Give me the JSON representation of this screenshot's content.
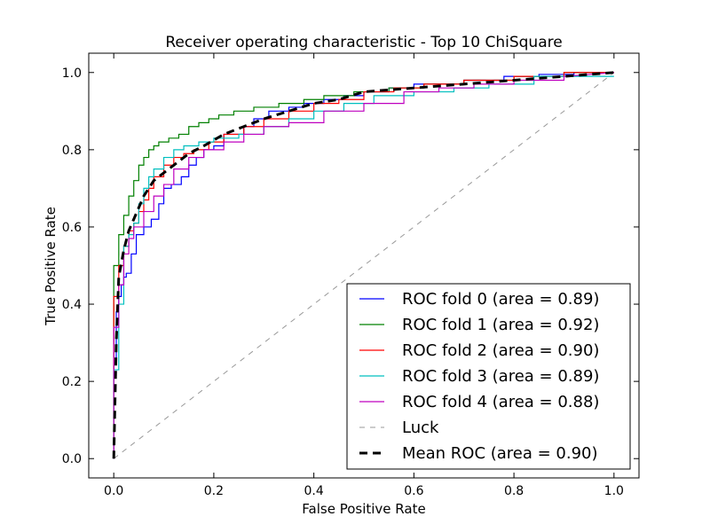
{
  "chart_data": {
    "type": "line",
    "title": "Receiver operating characteristic - Top 10 ChiSquare",
    "xlabel": "False Positive Rate",
    "ylabel": "True Positive Rate",
    "xlim": [
      -0.05,
      1.05
    ],
    "ylim": [
      -0.05,
      1.05
    ],
    "xticks": [
      "0.0",
      "0.2",
      "0.4",
      "0.6",
      "0.8",
      "1.0"
    ],
    "yticks": [
      "0.0",
      "0.2",
      "0.4",
      "0.6",
      "0.8",
      "1.0"
    ],
    "grid": false,
    "legend_position": "lower-right",
    "series": [
      {
        "name": "ROC fold 0 (area = 0.89)",
        "color": "#0000ff",
        "style": "solid",
        "x": [
          0.0,
          0.0,
          0.005,
          0.005,
          0.01,
          0.01,
          0.015,
          0.015,
          0.02,
          0.02,
          0.025,
          0.025,
          0.035,
          0.035,
          0.045,
          0.045,
          0.06,
          0.06,
          0.075,
          0.075,
          0.09,
          0.09,
          0.1,
          0.1,
          0.115,
          0.115,
          0.135,
          0.135,
          0.15,
          0.15,
          0.165,
          0.165,
          0.18,
          0.18,
          0.2,
          0.2,
          0.22,
          0.22,
          0.26,
          0.26,
          0.28,
          0.28,
          0.31,
          0.31,
          0.35,
          0.35,
          0.38,
          0.38,
          0.42,
          0.42,
          0.46,
          0.46,
          0.5,
          0.5,
          0.55,
          0.55,
          0.6,
          0.6,
          0.65,
          0.65,
          0.7,
          0.7,
          0.78,
          0.78,
          0.85,
          0.85,
          0.92,
          0.92,
          1.0
        ],
        "y": [
          0.0,
          0.26,
          0.26,
          0.38,
          0.38,
          0.42,
          0.42,
          0.45,
          0.45,
          0.47,
          0.47,
          0.48,
          0.48,
          0.53,
          0.53,
          0.58,
          0.58,
          0.6,
          0.6,
          0.62,
          0.62,
          0.66,
          0.66,
          0.7,
          0.7,
          0.71,
          0.71,
          0.73,
          0.73,
          0.76,
          0.76,
          0.78,
          0.78,
          0.8,
          0.8,
          0.81,
          0.81,
          0.84,
          0.84,
          0.86,
          0.86,
          0.88,
          0.88,
          0.9,
          0.9,
          0.91,
          0.91,
          0.92,
          0.92,
          0.93,
          0.93,
          0.94,
          0.94,
          0.95,
          0.95,
          0.96,
          0.96,
          0.97,
          0.97,
          0.97,
          0.97,
          0.98,
          0.98,
          0.99,
          0.99,
          0.995,
          0.995,
          1.0,
          1.0
        ]
      },
      {
        "name": "ROC fold 1 (area = 0.92)",
        "color": "#008000",
        "style": "solid",
        "x": [
          0.0,
          0.0,
          0.01,
          0.01,
          0.02,
          0.02,
          0.03,
          0.03,
          0.04,
          0.04,
          0.05,
          0.05,
          0.06,
          0.06,
          0.07,
          0.07,
          0.08,
          0.08,
          0.09,
          0.09,
          0.11,
          0.11,
          0.13,
          0.13,
          0.15,
          0.15,
          0.17,
          0.17,
          0.19,
          0.19,
          0.21,
          0.21,
          0.24,
          0.24,
          0.28,
          0.28,
          0.33,
          0.33,
          0.38,
          0.38,
          0.42,
          0.42,
          0.48,
          0.48,
          0.55,
          0.55,
          0.62,
          0.62,
          0.7,
          0.7,
          0.8,
          0.8,
          0.9,
          0.9,
          1.0
        ],
        "y": [
          0.0,
          0.5,
          0.5,
          0.58,
          0.58,
          0.63,
          0.63,
          0.68,
          0.68,
          0.72,
          0.72,
          0.76,
          0.76,
          0.78,
          0.78,
          0.8,
          0.8,
          0.81,
          0.81,
          0.82,
          0.82,
          0.83,
          0.83,
          0.84,
          0.84,
          0.86,
          0.86,
          0.87,
          0.87,
          0.88,
          0.88,
          0.89,
          0.89,
          0.9,
          0.9,
          0.91,
          0.91,
          0.92,
          0.92,
          0.93,
          0.93,
          0.94,
          0.94,
          0.95,
          0.95,
          0.96,
          0.96,
          0.97,
          0.97,
          0.98,
          0.98,
          0.99,
          0.99,
          1.0,
          1.0
        ]
      },
      {
        "name": "ROC fold 2 (area = 0.90)",
        "color": "#ff0000",
        "style": "solid",
        "x": [
          0.0,
          0.0,
          0.01,
          0.01,
          0.02,
          0.02,
          0.03,
          0.03,
          0.04,
          0.04,
          0.05,
          0.05,
          0.06,
          0.06,
          0.07,
          0.07,
          0.08,
          0.08,
          0.1,
          0.1,
          0.12,
          0.12,
          0.14,
          0.14,
          0.16,
          0.16,
          0.19,
          0.19,
          0.22,
          0.22,
          0.26,
          0.26,
          0.3,
          0.3,
          0.35,
          0.35,
          0.4,
          0.4,
          0.45,
          0.45,
          0.5,
          0.5,
          0.56,
          0.56,
          0.62,
          0.62,
          0.7,
          0.7,
          0.8,
          0.8,
          0.9,
          0.9,
          1.0
        ],
        "y": [
          0.0,
          0.42,
          0.42,
          0.5,
          0.5,
          0.55,
          0.55,
          0.59,
          0.59,
          0.61,
          0.61,
          0.64,
          0.64,
          0.67,
          0.67,
          0.7,
          0.7,
          0.73,
          0.73,
          0.76,
          0.76,
          0.78,
          0.78,
          0.79,
          0.79,
          0.8,
          0.8,
          0.82,
          0.82,
          0.84,
          0.84,
          0.86,
          0.86,
          0.88,
          0.88,
          0.9,
          0.9,
          0.92,
          0.92,
          0.93,
          0.93,
          0.95,
          0.95,
          0.96,
          0.96,
          0.97,
          0.97,
          0.98,
          0.98,
          0.99,
          0.99,
          1.0,
          1.0
        ]
      },
      {
        "name": "ROC fold 3 (area = 0.89)",
        "color": "#00bfbf",
        "style": "solid",
        "x": [
          0.0,
          0.0,
          0.01,
          0.01,
          0.02,
          0.02,
          0.03,
          0.03,
          0.04,
          0.04,
          0.05,
          0.05,
          0.06,
          0.06,
          0.07,
          0.07,
          0.08,
          0.08,
          0.1,
          0.1,
          0.12,
          0.12,
          0.14,
          0.14,
          0.17,
          0.17,
          0.2,
          0.2,
          0.25,
          0.25,
          0.3,
          0.3,
          0.35,
          0.35,
          0.4,
          0.4,
          0.46,
          0.46,
          0.52,
          0.52,
          0.6,
          0.6,
          0.68,
          0.68,
          0.75,
          0.75,
          0.84,
          0.84,
          1.0
        ],
        "y": [
          0.0,
          0.23,
          0.23,
          0.4,
          0.4,
          0.55,
          0.55,
          0.58,
          0.58,
          0.61,
          0.61,
          0.66,
          0.66,
          0.7,
          0.7,
          0.73,
          0.73,
          0.75,
          0.75,
          0.78,
          0.78,
          0.8,
          0.8,
          0.81,
          0.81,
          0.82,
          0.82,
          0.83,
          0.83,
          0.84,
          0.84,
          0.86,
          0.86,
          0.88,
          0.88,
          0.9,
          0.9,
          0.92,
          0.92,
          0.94,
          0.94,
          0.95,
          0.95,
          0.96,
          0.96,
          0.97,
          0.97,
          0.99,
          0.99
        ]
      },
      {
        "name": "ROC fold 4 (area = 0.88)",
        "color": "#bf00bf",
        "style": "solid",
        "x": [
          0.0,
          0.0,
          0.01,
          0.01,
          0.02,
          0.02,
          0.03,
          0.03,
          0.04,
          0.04,
          0.06,
          0.06,
          0.08,
          0.08,
          0.1,
          0.1,
          0.12,
          0.12,
          0.15,
          0.15,
          0.18,
          0.18,
          0.22,
          0.22,
          0.26,
          0.26,
          0.3,
          0.3,
          0.35,
          0.35,
          0.42,
          0.42,
          0.5,
          0.5,
          0.58,
          0.58,
          0.65,
          0.65,
          0.72,
          0.72,
          0.8,
          0.8,
          0.9,
          0.9,
          1.0
        ],
        "y": [
          0.0,
          0.34,
          0.34,
          0.45,
          0.45,
          0.53,
          0.53,
          0.57,
          0.57,
          0.6,
          0.6,
          0.64,
          0.64,
          0.68,
          0.68,
          0.71,
          0.71,
          0.75,
          0.75,
          0.78,
          0.78,
          0.8,
          0.8,
          0.82,
          0.82,
          0.84,
          0.84,
          0.86,
          0.86,
          0.87,
          0.87,
          0.9,
          0.9,
          0.92,
          0.92,
          0.95,
          0.95,
          0.96,
          0.96,
          0.97,
          0.97,
          0.98,
          0.98,
          0.99,
          1.0
        ]
      },
      {
        "name": "Luck",
        "color": "#999999",
        "style": "dashed",
        "x": [
          0.0,
          1.0
        ],
        "y": [
          0.0,
          1.0
        ]
      },
      {
        "name": "Mean ROC (area = 0.90)",
        "color": "#000000",
        "style": "bold-dashed",
        "x": [
          0.0,
          0.005,
          0.01,
          0.02,
          0.03,
          0.04,
          0.05,
          0.06,
          0.08,
          0.1,
          0.12,
          0.15,
          0.18,
          0.22,
          0.26,
          0.3,
          0.35,
          0.4,
          0.45,
          0.5,
          0.6,
          0.7,
          0.8,
          0.9,
          1.0
        ],
        "y": [
          0.0,
          0.3,
          0.47,
          0.54,
          0.59,
          0.62,
          0.65,
          0.68,
          0.72,
          0.74,
          0.76,
          0.79,
          0.81,
          0.84,
          0.86,
          0.88,
          0.9,
          0.92,
          0.93,
          0.95,
          0.96,
          0.97,
          0.98,
          0.99,
          1.0
        ]
      }
    ]
  }
}
